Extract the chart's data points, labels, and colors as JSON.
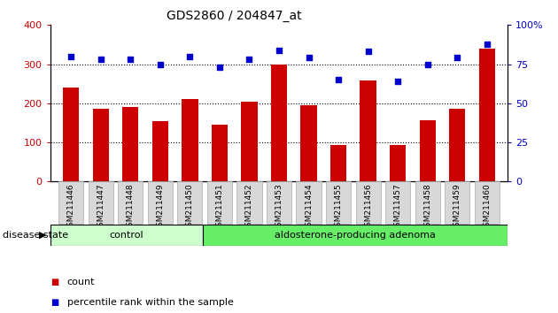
{
  "title": "GDS2860 / 204847_at",
  "samples": [
    "GSM211446",
    "GSM211447",
    "GSM211448",
    "GSM211449",
    "GSM211450",
    "GSM211451",
    "GSM211452",
    "GSM211453",
    "GSM211454",
    "GSM211455",
    "GSM211456",
    "GSM211457",
    "GSM211458",
    "GSM211459",
    "GSM211460"
  ],
  "counts": [
    240,
    185,
    190,
    155,
    210,
    145,
    205,
    300,
    195,
    93,
    258,
    93,
    157,
    187,
    340
  ],
  "percentiles": [
    80,
    78,
    78,
    75,
    80,
    73,
    78,
    84,
    79,
    65,
    83,
    64,
    75,
    79,
    88
  ],
  "control_count": 5,
  "group_labels": [
    "control",
    "aldosterone-producing adenoma"
  ],
  "ctrl_color": "#ccffcc",
  "adeno_color": "#66ee66",
  "bar_color": "#cc0000",
  "dot_color": "#0000cc",
  "left_ylim": [
    0,
    400
  ],
  "left_yticks": [
    0,
    100,
    200,
    300,
    400
  ],
  "right_ylim": [
    0,
    100
  ],
  "right_yticks": [
    0,
    25,
    50,
    75,
    100
  ],
  "right_yticklabels": [
    "0",
    "25",
    "50",
    "75",
    "100%"
  ],
  "grid_values": [
    100,
    200,
    300
  ],
  "background_color": "#ffffff",
  "tick_label_color_left": "#cc0000",
  "tick_label_color_right": "#0000cc",
  "disease_state_label": "disease state",
  "legend_count_label": "count",
  "legend_percentile_label": "percentile rank within the sample",
  "xtick_bg_color": "#d8d8d8"
}
